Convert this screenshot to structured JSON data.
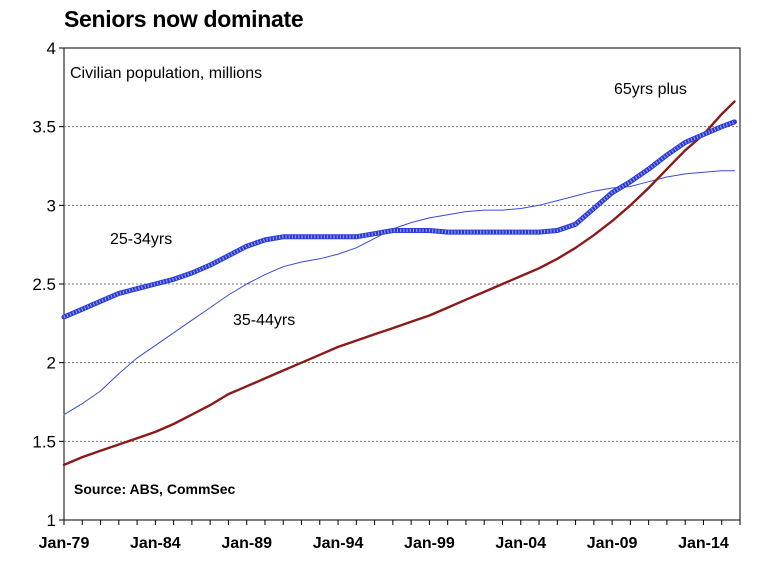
{
  "chart_data": {
    "type": "line",
    "title": "Seniors now dominate",
    "subtitle": "Civilian population, millions",
    "source": "Source: ABS, CommSec",
    "xlabel": "",
    "ylabel": "",
    "ylim": [
      1,
      4
    ],
    "yticks": [
      "1",
      "1.5",
      "2",
      "2.5",
      "3",
      "3.5",
      "4"
    ],
    "xlim": [
      1979.0,
      2016.0
    ],
    "xtick_labels": [
      "Jan-79",
      "Jan-84",
      "Jan-89",
      "Jan-94",
      "Jan-99",
      "Jan-04",
      "Jan-09",
      "Jan-14"
    ],
    "grid": "horizontal dashed",
    "colors": {
      "series_25_34": "#2b3bd6",
      "series_35_44": "#3a4bd0",
      "series_65_plus": "#8b1a1a"
    },
    "series": [
      {
        "name": "25-34yrs",
        "x": [
          1979.0,
          1980.0,
          1981.0,
          1982.0,
          1983.0,
          1984.0,
          1985.0,
          1986.0,
          1987.0,
          1988.0,
          1989.0,
          1990.0,
          1991.0,
          1992.0,
          1993.0,
          1994.0,
          1995.0,
          1996.0,
          1997.0,
          1998.0,
          1999.0,
          2000.0,
          2001.0,
          2002.0,
          2003.0,
          2004.0,
          2005.0,
          2006.0,
          2007.0,
          2008.0,
          2009.0,
          2010.0,
          2011.0,
          2012.0,
          2013.0,
          2014.0,
          2015.0,
          2015.7
        ],
        "values": [
          2.29,
          2.34,
          2.39,
          2.44,
          2.47,
          2.5,
          2.53,
          2.57,
          2.62,
          2.68,
          2.74,
          2.78,
          2.8,
          2.8,
          2.8,
          2.8,
          2.8,
          2.82,
          2.84,
          2.84,
          2.84,
          2.83,
          2.83,
          2.83,
          2.83,
          2.83,
          2.83,
          2.84,
          2.88,
          2.98,
          3.08,
          3.15,
          3.23,
          3.32,
          3.4,
          3.45,
          3.5,
          3.53
        ]
      },
      {
        "name": "35-44yrs",
        "x": [
          1979.0,
          1980.0,
          1981.0,
          1982.0,
          1983.0,
          1984.0,
          1985.0,
          1986.0,
          1987.0,
          1988.0,
          1989.0,
          1990.0,
          1991.0,
          1992.0,
          1993.0,
          1994.0,
          1995.0,
          1996.0,
          1997.0,
          1998.0,
          1999.0,
          2000.0,
          2001.0,
          2002.0,
          2003.0,
          2004.0,
          2005.0,
          2006.0,
          2007.0,
          2008.0,
          2009.0,
          2010.0,
          2011.0,
          2012.0,
          2013.0,
          2014.0,
          2015.0,
          2015.7
        ],
        "values": [
          1.67,
          1.74,
          1.82,
          1.93,
          2.03,
          2.11,
          2.19,
          2.27,
          2.35,
          2.43,
          2.5,
          2.56,
          2.61,
          2.64,
          2.66,
          2.69,
          2.73,
          2.79,
          2.85,
          2.89,
          2.92,
          2.94,
          2.96,
          2.97,
          2.97,
          2.98,
          3.0,
          3.03,
          3.06,
          3.09,
          3.11,
          3.12,
          3.15,
          3.18,
          3.2,
          3.21,
          3.22,
          3.22
        ]
      },
      {
        "name": "65yrs plus",
        "x": [
          1979.0,
          1980.0,
          1981.0,
          1982.0,
          1983.0,
          1984.0,
          1985.0,
          1986.0,
          1987.0,
          1988.0,
          1989.0,
          1990.0,
          1991.0,
          1992.0,
          1993.0,
          1994.0,
          1995.0,
          1996.0,
          1997.0,
          1998.0,
          1999.0,
          2000.0,
          2001.0,
          2002.0,
          2003.0,
          2004.0,
          2005.0,
          2006.0,
          2007.0,
          2008.0,
          2009.0,
          2010.0,
          2011.0,
          2012.0,
          2013.0,
          2014.0,
          2015.0,
          2015.7
        ],
        "values": [
          1.35,
          1.4,
          1.44,
          1.48,
          1.52,
          1.56,
          1.61,
          1.67,
          1.73,
          1.8,
          1.85,
          1.9,
          1.95,
          2.0,
          2.05,
          2.1,
          2.14,
          2.18,
          2.22,
          2.26,
          2.3,
          2.35,
          2.4,
          2.45,
          2.5,
          2.55,
          2.6,
          2.66,
          2.73,
          2.81,
          2.9,
          3.0,
          3.11,
          3.23,
          3.35,
          3.45,
          3.58,
          3.66
        ]
      }
    ],
    "annotations": [
      "25-34yrs",
      "35-44yrs",
      "65yrs plus"
    ]
  }
}
